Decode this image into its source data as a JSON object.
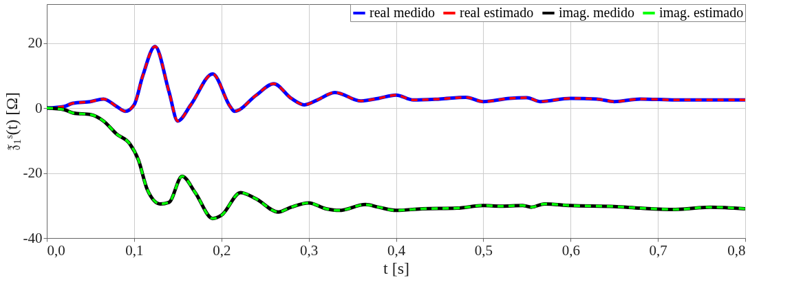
{
  "chart_data": {
    "type": "line",
    "xlabel": "t [s]",
    "ylabel": "𝔷̃₁ˢ(t) [Ω]",
    "xlim": [
      0,
      0.8
    ],
    "ylim": [
      -40,
      32
    ],
    "xticks": [
      {
        "value": 0,
        "label": "0,0"
      },
      {
        "value": 0.1,
        "label": "0,1"
      },
      {
        "value": 0.2,
        "label": "0,2"
      },
      {
        "value": 0.3,
        "label": "0,3"
      },
      {
        "value": 0.4,
        "label": "0,4"
      },
      {
        "value": 0.5,
        "label": "0,5"
      },
      {
        "value": 0.6,
        "label": "0,6"
      },
      {
        "value": 0.7,
        "label": "0,7"
      },
      {
        "value": 0.8,
        "label": "0,8"
      }
    ],
    "yticks": [
      -40,
      -20,
      0,
      20
    ],
    "grid": true,
    "legend": "top right",
    "series": [
      {
        "name": "real medido",
        "color": "#0000ff",
        "line_style": "solid",
        "x": [
          0,
          0.02,
          0.03,
          0.05,
          0.065,
          0.08,
          0.09,
          0.1,
          0.11,
          0.124,
          0.14,
          0.15,
          0.165,
          0.19,
          0.21,
          0.215,
          0.24,
          0.26,
          0.28,
          0.295,
          0.31,
          0.33,
          0.36,
          0.38,
          0.4,
          0.42,
          0.45,
          0.48,
          0.5,
          0.53,
          0.55,
          0.565,
          0.6,
          0.63,
          0.65,
          0.68,
          0.72,
          0.76,
          0.8
        ],
        "values": [
          0,
          0.5,
          1.5,
          2,
          2.8,
          0.5,
          -1,
          1,
          10,
          19,
          5,
          -4,
          1,
          10.5,
          0.5,
          -1,
          4,
          7.5,
          3,
          1,
          2.5,
          4.8,
          2.2,
          3,
          4,
          2.5,
          2.8,
          3.3,
          2,
          3,
          3.2,
          2,
          3,
          2.8,
          2,
          2.8,
          2.5,
          2.5,
          2.5
        ]
      },
      {
        "name": "real estimado",
        "color": "#ff0000",
        "line_style": "dashed",
        "x": [
          0,
          0.02,
          0.03,
          0.05,
          0.065,
          0.08,
          0.09,
          0.1,
          0.11,
          0.124,
          0.14,
          0.15,
          0.165,
          0.19,
          0.21,
          0.215,
          0.24,
          0.26,
          0.28,
          0.295,
          0.31,
          0.33,
          0.36,
          0.38,
          0.4,
          0.42,
          0.45,
          0.48,
          0.5,
          0.53,
          0.55,
          0.565,
          0.6,
          0.63,
          0.65,
          0.68,
          0.72,
          0.76,
          0.8
        ],
        "values": [
          0,
          0.5,
          1.5,
          2,
          2.8,
          0.5,
          -1,
          1,
          10,
          19,
          5,
          -4,
          1,
          10.5,
          0.5,
          -1,
          4,
          7.5,
          3,
          1,
          2.5,
          4.8,
          2.2,
          3,
          4,
          2.5,
          2.8,
          3.3,
          2,
          3,
          3.2,
          2,
          3,
          2.8,
          2,
          2.8,
          2.5,
          2.5,
          2.5
        ]
      },
      {
        "name": "imag. medido",
        "color": "#000000",
        "line_style": "solid",
        "x": [
          0,
          0.02,
          0.03,
          0.05,
          0.065,
          0.08,
          0.095,
          0.105,
          0.115,
          0.13,
          0.14,
          0.155,
          0.17,
          0.19,
          0.2,
          0.222,
          0.24,
          0.265,
          0.28,
          0.3,
          0.32,
          0.335,
          0.365,
          0.38,
          0.4,
          0.43,
          0.47,
          0.5,
          0.52,
          0.545,
          0.555,
          0.57,
          0.6,
          0.65,
          0.68,
          0.72,
          0.76,
          0.8
        ],
        "values": [
          0,
          -0.5,
          -1.5,
          -2,
          -4,
          -8,
          -11,
          -16,
          -25,
          -29.5,
          -29,
          -21,
          -26,
          -34,
          -33,
          -26,
          -28,
          -32,
          -30.5,
          -29.2,
          -31,
          -31.5,
          -29.7,
          -30.5,
          -31.5,
          -31,
          -30.8,
          -30,
          -30.2,
          -30,
          -30.5,
          -29.5,
          -30,
          -30.3,
          -30.8,
          -31.2,
          -30.5,
          -31
        ]
      },
      {
        "name": "imag. estimado",
        "color": "#00ff00",
        "line_style": "dashed",
        "x": [
          0,
          0.02,
          0.03,
          0.05,
          0.065,
          0.08,
          0.095,
          0.105,
          0.115,
          0.13,
          0.14,
          0.155,
          0.17,
          0.19,
          0.2,
          0.222,
          0.24,
          0.265,
          0.28,
          0.3,
          0.32,
          0.335,
          0.365,
          0.38,
          0.4,
          0.43,
          0.47,
          0.5,
          0.52,
          0.545,
          0.555,
          0.57,
          0.6,
          0.65,
          0.68,
          0.72,
          0.76,
          0.8
        ],
        "values": [
          0,
          -0.5,
          -1.5,
          -2,
          -4,
          -8,
          -11,
          -16,
          -25,
          -29.5,
          -29,
          -21,
          -26,
          -34,
          -33,
          -26,
          -28,
          -32,
          -30.5,
          -29.2,
          -31,
          -31.5,
          -29.7,
          -30.5,
          -31.5,
          -31,
          -30.8,
          -30,
          -30.2,
          -30,
          -30.5,
          -29.5,
          -30,
          -30.3,
          -30.8,
          -31.2,
          -30.5,
          -31
        ]
      }
    ]
  }
}
